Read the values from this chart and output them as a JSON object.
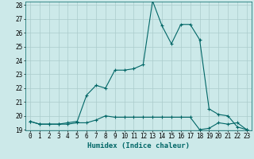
{
  "xlabel": "Humidex (Indice chaleur)",
  "x": [
    0,
    1,
    2,
    3,
    4,
    5,
    6,
    7,
    8,
    9,
    10,
    11,
    12,
    13,
    14,
    15,
    16,
    17,
    18,
    19,
    20,
    21,
    22,
    23
  ],
  "line1": [
    19.6,
    19.4,
    19.4,
    19.4,
    19.4,
    19.5,
    19.5,
    19.7,
    20.0,
    19.9,
    19.9,
    19.9,
    19.9,
    19.9,
    19.9,
    19.9,
    19.9,
    19.9,
    19.0,
    19.1,
    19.5,
    19.4,
    19.5,
    19.0
  ],
  "line2": [
    19.6,
    19.4,
    19.4,
    19.4,
    19.5,
    19.6,
    21.5,
    22.2,
    22.0,
    23.3,
    23.3,
    23.4,
    23.7,
    28.3,
    26.5,
    25.2,
    26.6,
    26.6,
    25.5,
    20.5,
    20.1,
    20.0,
    19.2,
    19.0
  ],
  "bg_color": "#cce9e9",
  "line_color": "#006666",
  "grid_color": "#aacccc",
  "ylim_min": 19,
  "ylim_max": 28,
  "yticks": [
    19,
    20,
    21,
    22,
    23,
    24,
    25,
    26,
    27,
    28
  ],
  "xticks": [
    0,
    1,
    2,
    3,
    4,
    5,
    6,
    7,
    8,
    9,
    10,
    11,
    12,
    13,
    14,
    15,
    16,
    17,
    18,
    19,
    20,
    21,
    22,
    23
  ],
  "marker": "+",
  "markersize": 3,
  "linewidth": 0.8,
  "fontsize_label": 6.5,
  "fontsize_tick": 5.5
}
